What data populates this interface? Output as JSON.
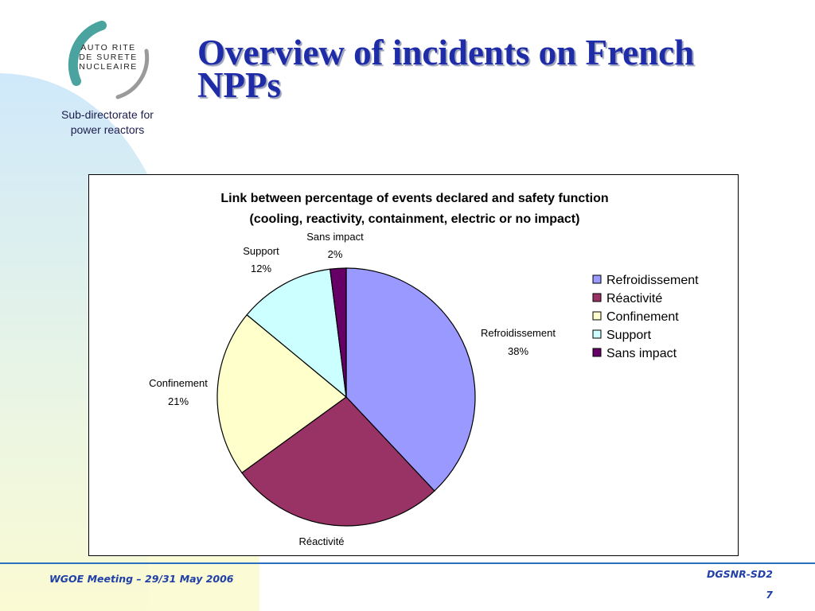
{
  "logo": {
    "lines": [
      "AUTO RITE",
      "DE SURETE",
      "NUCLEAIRE"
    ]
  },
  "header": {
    "subtitle_line1": "Sub-directorate for",
    "subtitle_line2": "power reactors",
    "title_line1": "Overview of incidents on French",
    "title_line2": "NPPs"
  },
  "footer": {
    "left": "WGOE Meeting – 29/31 May 2006",
    "right": "DGSNR-SD2",
    "page": "7"
  },
  "colors": {
    "title": "#1f2ca8",
    "footer_text": "#2040a8",
    "footer_line": "#2a6fc0"
  },
  "chart_data": {
    "type": "pie",
    "title_line1": "Link between percentage of events declared and safety function",
    "title_line2": "(cooling, reactivity, containment, electric or no impact)",
    "legend_position": "right",
    "slices": [
      {
        "name": "Refroidissement",
        "value": 38,
        "label": "38%",
        "color": "#9999ff"
      },
      {
        "name": "Réactivité",
        "value": 27,
        "label": "27%",
        "color": "#993366"
      },
      {
        "name": "Confinement",
        "value": 21,
        "label": "21%",
        "color": "#ffffcc"
      },
      {
        "name": "Support",
        "value": 12,
        "label": "12%",
        "color": "#ccffff"
      },
      {
        "name": "Sans impact",
        "value": 2,
        "label": "2%",
        "color": "#660066"
      }
    ]
  }
}
